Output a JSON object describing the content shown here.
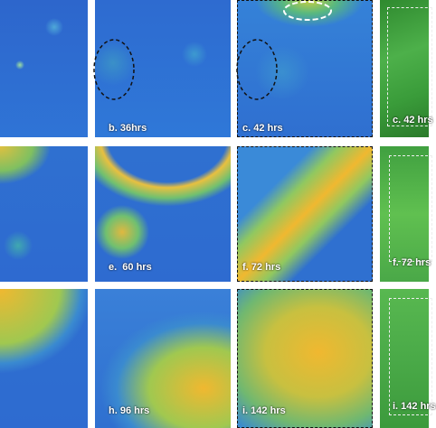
{
  "panels": [
    {
      "label": "b. 36hrs"
    },
    {
      "label": "c. 42 hrs"
    },
    {
      "label": "c. 42 hrs"
    },
    {
      "label": "e.  60 hrs"
    },
    {
      "label": "f. 72 hrs"
    },
    {
      "label": "f. 72 hrs"
    },
    {
      "label": "h. 96 hrs"
    },
    {
      "label": "i. 142 hrs"
    },
    {
      "label": "i. 142 hrs"
    }
  ]
}
